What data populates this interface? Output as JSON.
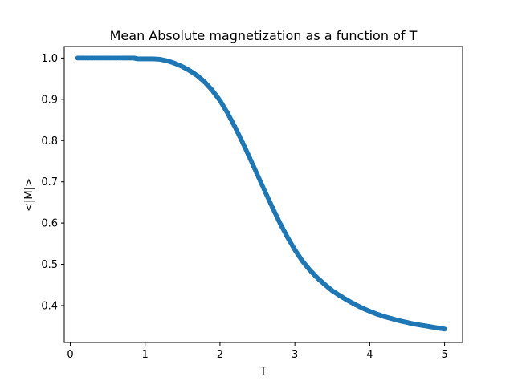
{
  "chart_data": {
    "type": "scatter",
    "title": "Mean Absolute magnetization as a function of T",
    "xlabel": "T",
    "ylabel": "<|M|>",
    "xlim": [
      -0.08,
      5.24
    ],
    "ylim": [
      0.3105,
      1.028
    ],
    "xticks": [
      0,
      1,
      2,
      3,
      4,
      5
    ],
    "xtick_labels": [
      "0",
      "1",
      "2",
      "3",
      "4",
      "5"
    ],
    "yticks": [
      0.4,
      0.5,
      0.6,
      0.7,
      0.8,
      0.9,
      1.0
    ],
    "ytick_labels": [
      "0.4",
      "0.5",
      "0.6",
      "0.7",
      "0.8",
      "0.9",
      "1.0"
    ],
    "grid": false,
    "legend": "none",
    "marker_color": "#1f77b4",
    "series": [
      {
        "x": [
          0.1,
          0.3,
          0.5,
          0.7,
          0.85,
          0.9,
          1.0,
          1.1,
          1.2,
          1.3,
          1.4,
          1.5,
          1.6,
          1.7,
          1.8,
          1.9,
          2.0,
          2.1,
          2.2,
          2.3,
          2.4,
          2.5,
          2.6,
          2.7,
          2.8,
          2.9,
          3.0,
          3.1,
          3.2,
          3.3,
          3.4,
          3.5,
          3.6,
          3.7,
          3.8,
          3.9,
          4.0,
          4.1,
          4.2,
          4.3,
          4.4,
          4.5,
          4.6,
          4.7,
          4.8,
          4.9,
          5.0
        ],
        "y": [
          1.0,
          1.0,
          1.0,
          1.0,
          1.0,
          0.998,
          0.998,
          0.998,
          0.997,
          0.993,
          0.987,
          0.979,
          0.969,
          0.957,
          0.941,
          0.921,
          0.897,
          0.867,
          0.833,
          0.796,
          0.757,
          0.717,
          0.677,
          0.638,
          0.6,
          0.566,
          0.535,
          0.508,
          0.486,
          0.467,
          0.451,
          0.436,
          0.424,
          0.413,
          0.403,
          0.394,
          0.386,
          0.379,
          0.373,
          0.368,
          0.363,
          0.359,
          0.355,
          0.352,
          0.349,
          0.346,
          0.343
        ]
      }
    ]
  }
}
